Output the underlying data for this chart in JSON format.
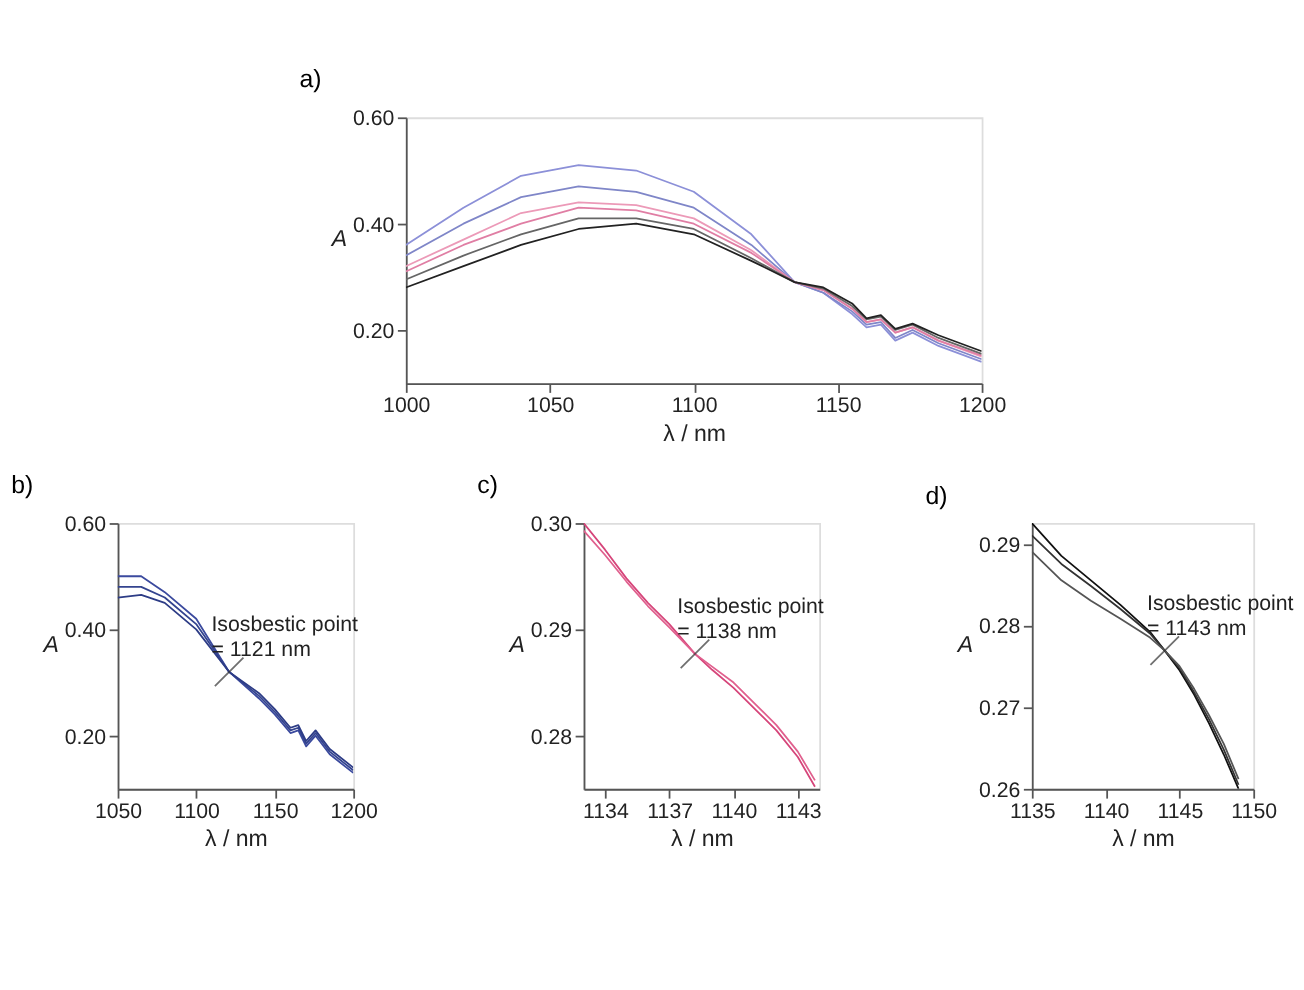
{
  "chart_data": [
    {
      "type": "line",
      "title": "a)",
      "xlabel": "λ / nm",
      "ylabel": "A",
      "xlim": [
        1000,
        1200
      ],
      "ylim": [
        0.1,
        0.6
      ],
      "xticks": [
        1000,
        1050,
        1100,
        1150,
        1200
      ],
      "yticks": [
        {
          "value": 0.2,
          "label": "0.20"
        },
        {
          "value": 0.4,
          "label": "0.40"
        },
        {
          "value": 0.6,
          "label": "0.60"
        }
      ],
      "series": [
        {
          "color": "#8c90d8",
          "x": [
            1000,
            1020,
            1040,
            1060,
            1080,
            1100,
            1120,
            1135,
            1145,
            1155,
            1160,
            1165,
            1170,
            1176,
            1185,
            1200
          ],
          "values": [
            0.36,
            0.43,
            0.49,
            0.51,
            0.5,
            0.46,
            0.38,
            0.29,
            0.27,
            0.23,
            0.205,
            0.21,
            0.18,
            0.195,
            0.17,
            0.14
          ]
        },
        {
          "color": "#7f86c8",
          "x": [
            1000,
            1020,
            1040,
            1060,
            1080,
            1100,
            1120,
            1135,
            1145,
            1155,
            1160,
            1165,
            1170,
            1176,
            1185,
            1200
          ],
          "values": [
            0.34,
            0.4,
            0.45,
            0.47,
            0.46,
            0.43,
            0.36,
            0.29,
            0.27,
            0.235,
            0.21,
            0.215,
            0.185,
            0.2,
            0.175,
            0.145
          ]
        },
        {
          "color": "#ec9ab8",
          "x": [
            1000,
            1020,
            1040,
            1060,
            1080,
            1100,
            1120,
            1135,
            1145,
            1155,
            1160,
            1165,
            1170,
            1176,
            1185,
            1200
          ],
          "values": [
            0.32,
            0.37,
            0.42,
            0.44,
            0.435,
            0.41,
            0.35,
            0.29,
            0.275,
            0.24,
            0.215,
            0.22,
            0.195,
            0.205,
            0.18,
            0.15
          ]
        },
        {
          "color": "#e07ea4",
          "x": [
            1000,
            1020,
            1040,
            1060,
            1080,
            1100,
            1120,
            1135,
            1145,
            1155,
            1160,
            1165,
            1170,
            1176,
            1185,
            1200
          ],
          "values": [
            0.31,
            0.36,
            0.4,
            0.43,
            0.425,
            0.4,
            0.345,
            0.29,
            0.275,
            0.24,
            0.215,
            0.22,
            0.195,
            0.205,
            0.18,
            0.152
          ]
        },
        {
          "color": "#666666",
          "x": [
            1000,
            1020,
            1040,
            1060,
            1080,
            1100,
            1120,
            1135,
            1145,
            1155,
            1160,
            1165,
            1170,
            1176,
            1185,
            1200
          ],
          "values": [
            0.295,
            0.34,
            0.38,
            0.41,
            0.41,
            0.39,
            0.335,
            0.29,
            0.278,
            0.245,
            0.22,
            0.225,
            0.2,
            0.21,
            0.185,
            0.155
          ]
        },
        {
          "color": "#222222",
          "x": [
            1000,
            1020,
            1040,
            1060,
            1080,
            1100,
            1120,
            1135,
            1145,
            1155,
            1160,
            1165,
            1170,
            1176,
            1185,
            1200
          ],
          "values": [
            0.28,
            0.32,
            0.36,
            0.39,
            0.4,
            0.38,
            0.33,
            0.29,
            0.28,
            0.25,
            0.222,
            0.228,
            0.202,
            0.212,
            0.19,
            0.16
          ]
        }
      ]
    },
    {
      "type": "line",
      "title": "b)",
      "xlabel": "λ / nm",
      "ylabel": "A",
      "xlim": [
        1050,
        1200
      ],
      "ylim": [
        0.1,
        0.6
      ],
      "xticks": [
        1050,
        1100,
        1150,
        1200
      ],
      "yticks": [
        {
          "value": 0.2,
          "label": "0.20"
        },
        {
          "value": 0.4,
          "label": "0.40"
        },
        {
          "value": 0.6,
          "label": "0.60"
        }
      ],
      "annotations": [
        {
          "text": "Isosbestic point\n= 1121 nm",
          "x": 1121,
          "y": 0.32
        }
      ],
      "series": [
        {
          "color": "#3b4a9e",
          "x": [
            1050,
            1065,
            1080,
            1100,
            1121,
            1140,
            1150,
            1160,
            1165,
            1170,
            1176,
            1185,
            1200
          ],
          "values": [
            0.5,
            0.5,
            0.47,
            0.42,
            0.32,
            0.27,
            0.24,
            0.205,
            0.21,
            0.18,
            0.2,
            0.165,
            0.13
          ]
        },
        {
          "color": "#34448f",
          "x": [
            1050,
            1065,
            1080,
            1100,
            1121,
            1140,
            1150,
            1160,
            1165,
            1170,
            1176,
            1185,
            1200
          ],
          "values": [
            0.48,
            0.48,
            0.46,
            0.41,
            0.32,
            0.275,
            0.245,
            0.21,
            0.215,
            0.185,
            0.205,
            0.17,
            0.135
          ]
        },
        {
          "color": "#2d3c86",
          "x": [
            1050,
            1065,
            1080,
            1100,
            1121,
            1140,
            1150,
            1160,
            1165,
            1170,
            1176,
            1185,
            1200
          ],
          "values": [
            0.46,
            0.465,
            0.45,
            0.4,
            0.32,
            0.28,
            0.25,
            0.215,
            0.22,
            0.19,
            0.21,
            0.175,
            0.14
          ]
        }
      ]
    },
    {
      "type": "line",
      "title": "c)",
      "xlabel": "λ / nm",
      "ylabel": "A",
      "xlim": [
        1133,
        1144
      ],
      "ylim": [
        0.275,
        0.3
      ],
      "xticks": [
        1134,
        1137,
        1140,
        1143
      ],
      "yticks": [
        {
          "value": 0.28,
          "label": "0.28"
        },
        {
          "value": 0.29,
          "label": "0.29"
        },
        {
          "value": 0.3,
          "label": "0.30"
        }
      ],
      "annotations": [
        {
          "text": "Isosbestic point\n= 1138 nm",
          "x": 1138.2,
          "y": 0.2877
        }
      ],
      "series": [
        {
          "color": "#d6457a",
          "x": [
            1133,
            1134,
            1135,
            1136,
            1137,
            1138.2,
            1139,
            1140,
            1141,
            1142,
            1143,
            1143.8
          ],
          "values": [
            0.3,
            0.2975,
            0.2948,
            0.2925,
            0.2905,
            0.2877,
            0.2862,
            0.2845,
            0.2825,
            0.2805,
            0.278,
            0.2752
          ]
        },
        {
          "color": "#e0608e",
          "x": [
            1133,
            1134,
            1135,
            1136,
            1137,
            1138.2,
            1139,
            1140,
            1141,
            1142,
            1143,
            1143.8
          ],
          "values": [
            0.2993,
            0.297,
            0.2945,
            0.2922,
            0.2902,
            0.2877,
            0.2865,
            0.285,
            0.283,
            0.281,
            0.2785,
            0.2758
          ]
        }
      ]
    },
    {
      "type": "line",
      "title": "d)",
      "xlabel": "λ / nm",
      "ylabel": "A",
      "xlim": [
        1135,
        1150
      ],
      "ylim": [
        0.26,
        0.2925
      ],
      "xticks": [
        1135,
        1140,
        1145,
        1150
      ],
      "yticks": [
        {
          "value": 0.26,
          "label": "0.26"
        },
        {
          "value": 0.27,
          "label": "0.27"
        },
        {
          "value": 0.28,
          "label": "0.28"
        },
        {
          "value": 0.29,
          "label": "0.29"
        }
      ],
      "annotations": [
        {
          "text": "Isosbestic point\n= 1143 nm",
          "x": 1144,
          "y": 0.2769
        }
      ],
      "series": [
        {
          "color": "#111111",
          "x": [
            1135,
            1137,
            1139,
            1141,
            1143,
            1144,
            1145,
            1146,
            1147,
            1148,
            1149
          ],
          "values": [
            0.2925,
            0.2885,
            0.2855,
            0.2825,
            0.2792,
            0.2769,
            0.2745,
            0.2715,
            0.268,
            0.2642,
            0.26
          ]
        },
        {
          "color": "#333333",
          "x": [
            1135,
            1137,
            1139,
            1141,
            1143,
            1144,
            1145,
            1146,
            1147,
            1148,
            1149
          ],
          "values": [
            0.291,
            0.2875,
            0.2848,
            0.282,
            0.279,
            0.2769,
            0.2748,
            0.2718,
            0.2685,
            0.2648,
            0.2605
          ]
        },
        {
          "color": "#555555",
          "x": [
            1135,
            1137,
            1139,
            1141,
            1143,
            1144,
            1145,
            1146,
            1147,
            1148,
            1149
          ],
          "values": [
            0.289,
            0.2855,
            0.283,
            0.2808,
            0.2785,
            0.2769,
            0.275,
            0.2722,
            0.269,
            0.2655,
            0.2612
          ]
        }
      ]
    }
  ]
}
